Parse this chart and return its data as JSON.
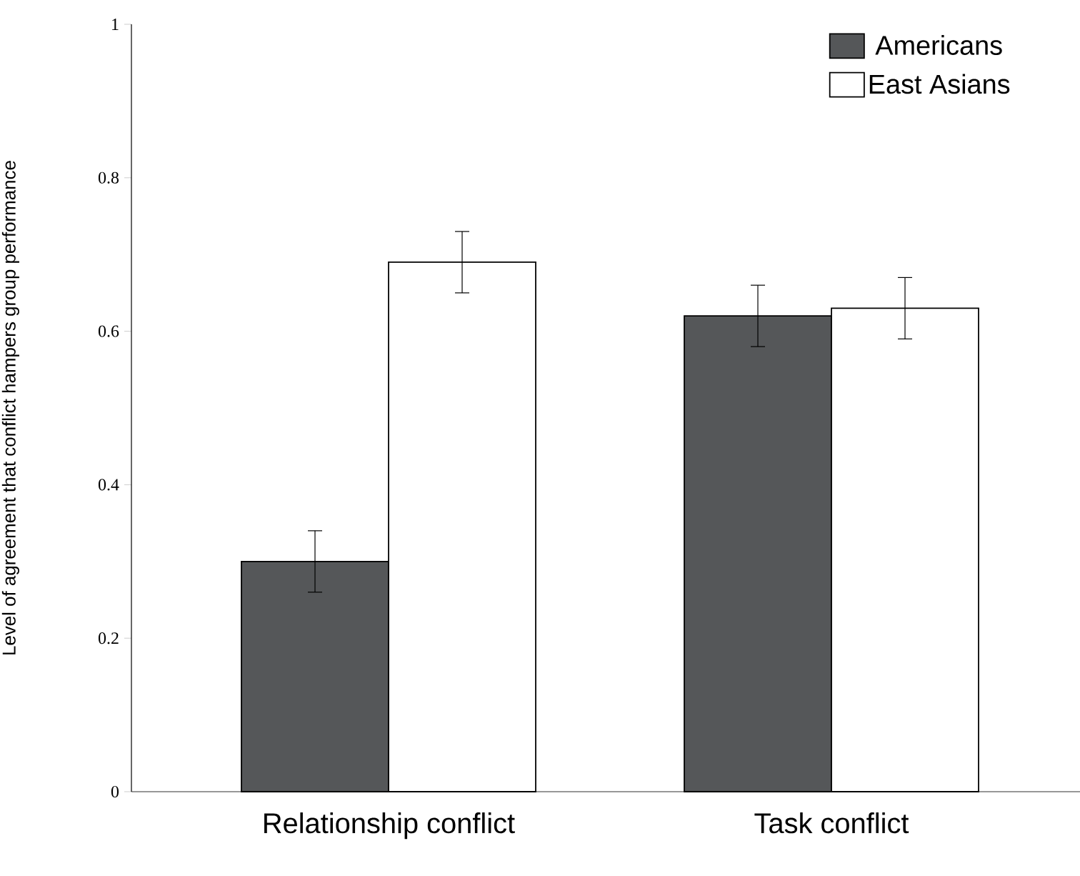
{
  "chart_data": {
    "type": "bar",
    "ylabel": "Level of agreement that conflict hampers group performance",
    "categories": [
      "Relationship conflict",
      "Task conflict"
    ],
    "series": [
      {
        "name": "Americans",
        "color": "#555759",
        "values": [
          0.3,
          0.62
        ],
        "errors": [
          0.04,
          0.04
        ]
      },
      {
        "name": "East Asians",
        "color": "#ffffff",
        "values": [
          0.69,
          0.63
        ],
        "errors": [
          0.04,
          0.04
        ]
      }
    ],
    "ylim": [
      0,
      1
    ],
    "yticks": [
      0,
      0.2,
      0.4,
      0.6,
      0.8,
      1
    ],
    "grid": false,
    "legend": "top right"
  }
}
